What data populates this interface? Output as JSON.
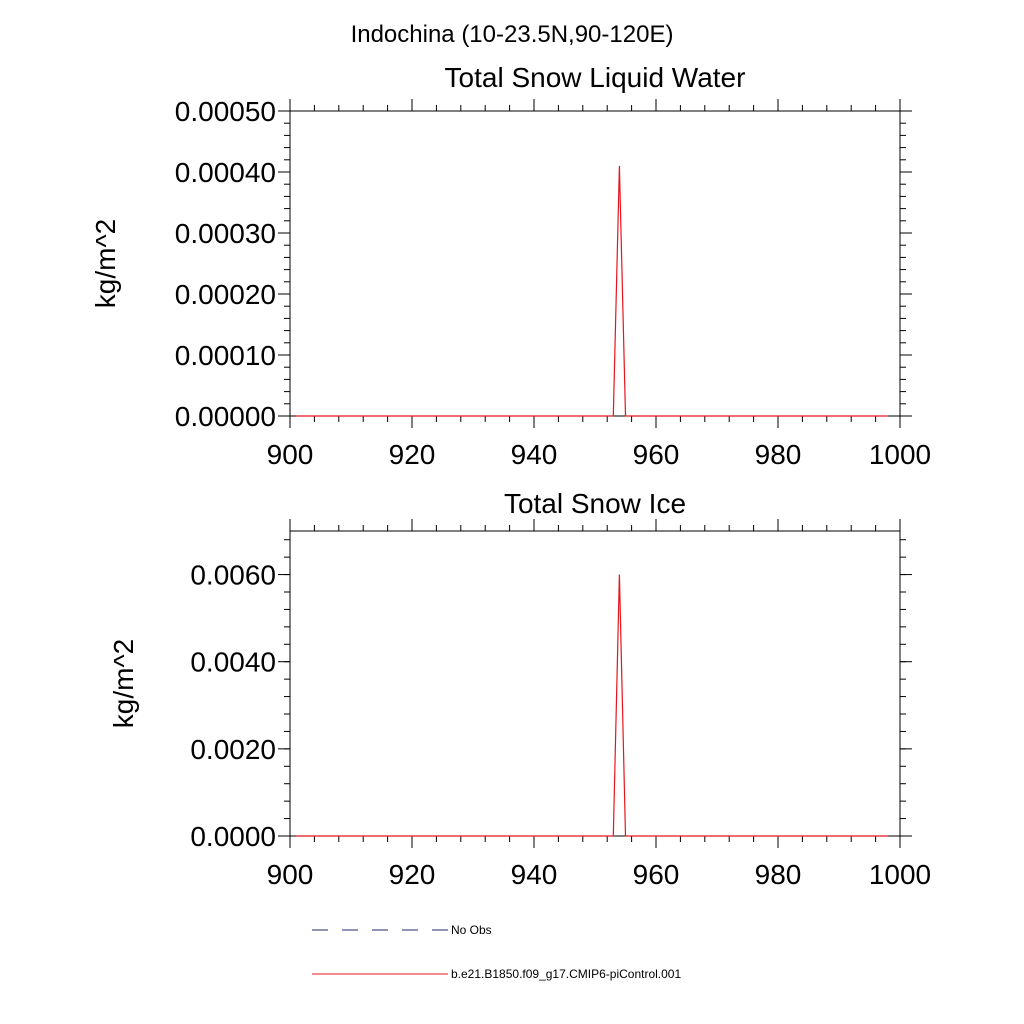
{
  "figure_title": "Indochina (10-23.5N,90-120E)",
  "legend": {
    "entries": [
      {
        "label": "No Obs",
        "style": "dashed",
        "color": "#1f2a6b"
      },
      {
        "label": "b.e21.B1850.f09_g17.CMIP6-piControl.001",
        "style": "solid",
        "color": "#e8141b"
      }
    ]
  },
  "chart_data": [
    {
      "type": "line",
      "title": "Total Snow Liquid Water",
      "ylabel": "kg/m^2",
      "xlim": [
        900,
        1000
      ],
      "ylim": [
        0,
        0.0005
      ],
      "x_ticks": [
        900,
        920,
        940,
        960,
        980,
        1000
      ],
      "x_tick_labels": [
        "900",
        "920",
        "940",
        "960",
        "980",
        "1000"
      ],
      "y_ticks": [
        0,
        0.0001,
        0.0002,
        0.0003,
        0.0004,
        0.0005
      ],
      "y_tick_labels": [
        "0.00000",
        "0.00010",
        "0.00020",
        "0.00030",
        "0.00040",
        "0.00050"
      ],
      "series": [
        {
          "name": "b.e21.B1850.f09_g17.CMIP6-piControl.001",
          "color": "#e8141b",
          "x": [
            901,
            953,
            954,
            955,
            998
          ],
          "y": [
            0,
            0,
            0.00041,
            0,
            0
          ]
        }
      ]
    },
    {
      "type": "line",
      "title": "Total Snow Ice",
      "ylabel": "kg/m^2",
      "xlim": [
        900,
        1000
      ],
      "ylim": [
        0,
        0.007
      ],
      "x_ticks": [
        900,
        920,
        940,
        960,
        980,
        1000
      ],
      "x_tick_labels": [
        "900",
        "920",
        "940",
        "960",
        "980",
        "1000"
      ],
      "y_ticks": [
        0,
        0.002,
        0.004,
        0.006
      ],
      "y_tick_labels": [
        "0.0000",
        "0.0020",
        "0.0040",
        "0.0060"
      ],
      "series": [
        {
          "name": "b.e21.B1850.f09_g17.CMIP6-piControl.001",
          "color": "#e8141b",
          "x": [
            901,
            953,
            954,
            955,
            998
          ],
          "y": [
            0,
            0,
            0.006,
            0,
            0
          ]
        }
      ]
    }
  ]
}
